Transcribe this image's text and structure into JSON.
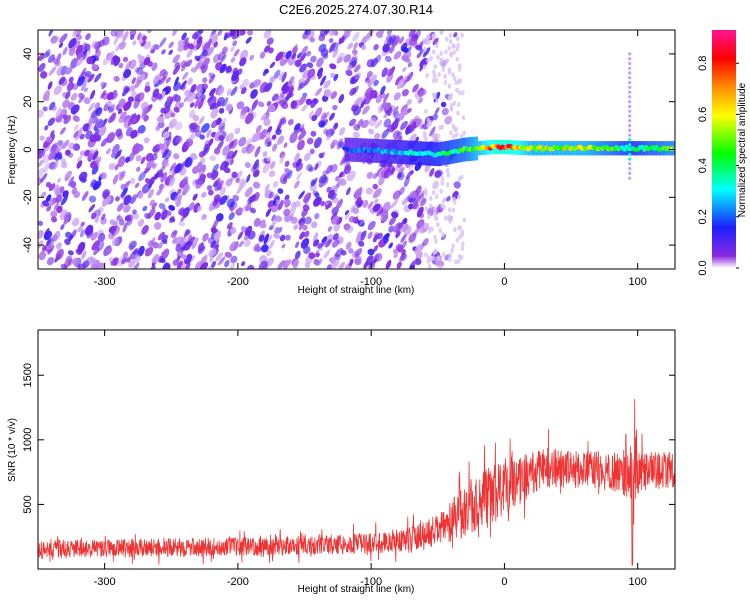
{
  "title": "C2E6.2025.274.07.30.R14",
  "chart_data": [
    {
      "type": "heatmap",
      "xlabel": "Height of straight line (km)",
      "ylabel": "Frequency (Hz)",
      "xlim": [
        -350,
        128
      ],
      "ylim": [
        -50,
        50
      ],
      "xticks": [
        -300,
        -200,
        -100,
        0,
        100
      ],
      "yticks": [
        -40,
        -20,
        0,
        20,
        40
      ],
      "colorbar": {
        "label": "Normalized spectral amplitude",
        "range": [
          0.0,
          0.93
        ],
        "ticks": [
          0.0,
          0.2,
          0.4,
          0.6,
          0.8
        ],
        "tick_labels": [
          "0.0",
          "0.2",
          "0.4",
          "0.6",
          "0.8"
        ],
        "colors": [
          "#ffffff",
          "#8a2be2",
          "#1e1eff",
          "#00ffff",
          "#00ff00",
          "#ffff00",
          "#ff8c00",
          "#ff0000",
          "#ff1493"
        ]
      },
      "ridge": [
        {
          "x": -120,
          "f": 0,
          "amp": 0.2
        },
        {
          "x": -80,
          "f": -1,
          "amp": 0.3
        },
        {
          "x": -50,
          "f": -2,
          "amp": 0.4
        },
        {
          "x": -30,
          "f": 0,
          "amp": 0.5
        },
        {
          "x": -10,
          "f": 1,
          "amp": 0.75
        },
        {
          "x": 0,
          "f": 1,
          "amp": 0.85
        },
        {
          "x": 20,
          "f": 0.5,
          "amp": 0.6
        },
        {
          "x": 60,
          "f": 0.5,
          "amp": 0.6
        },
        {
          "x": 95,
          "f": 0.5,
          "amp": 0.4
        },
        {
          "x": 128,
          "f": 0.5,
          "amp": 0.55
        }
      ]
    },
    {
      "type": "line",
      "xlabel": "Height of straight line (km)",
      "ylabel": "SNR (10 * v/v)",
      "xlim": [
        -350,
        128
      ],
      "ylim": [
        0,
        1850
      ],
      "xticks": [
        -300,
        -200,
        -100,
        0,
        100
      ],
      "yticks": [
        500,
        1000,
        1500
      ],
      "line_color": "#ee3333",
      "x": [
        -350,
        -300,
        -250,
        -200,
        -150,
        -100,
        -70,
        -50,
        -40,
        -30,
        -20,
        -10,
        0,
        10,
        20,
        30,
        40,
        60,
        80,
        95,
        97,
        100,
        110,
        128
      ],
      "y_mean": [
        150,
        160,
        165,
        175,
        185,
        200,
        230,
        300,
        370,
        450,
        520,
        560,
        620,
        680,
        730,
        790,
        780,
        770,
        760,
        700,
        800,
        740,
        760,
        770
      ],
      "y_spread": [
        90,
        90,
        90,
        90,
        95,
        100,
        130,
        150,
        200,
        250,
        280,
        300,
        260,
        240,
        230,
        200,
        190,
        180,
        180,
        250,
        900,
        200,
        180,
        180
      ]
    }
  ]
}
